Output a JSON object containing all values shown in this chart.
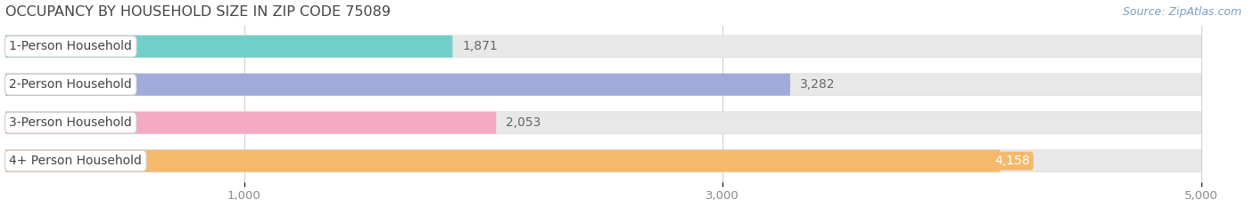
{
  "title": "OCCUPANCY BY HOUSEHOLD SIZE IN ZIP CODE 75089",
  "source": "Source: ZipAtlas.com",
  "categories": [
    "1-Person Household",
    "2-Person Household",
    "3-Person Household",
    "4+ Person Household"
  ],
  "values": [
    1871,
    3282,
    2053,
    4158
  ],
  "bar_colors": [
    "#72cfc9",
    "#9fabda",
    "#f4aac2",
    "#f5b96b"
  ],
  "background_color": "#ffffff",
  "row_bg_color": "#f0f0f0",
  "bar_bg_color": "#e8e8e8",
  "xlim_max": 5200,
  "bar_max_data": 5000,
  "xticks": [
    1000,
    3000,
    5000
  ],
  "xtick_labels": [
    "1,000",
    "3,000",
    "5,000"
  ],
  "title_fontsize": 11.5,
  "source_fontsize": 9,
  "bar_label_fontsize": 10,
  "category_fontsize": 10,
  "tick_fontsize": 9.5
}
